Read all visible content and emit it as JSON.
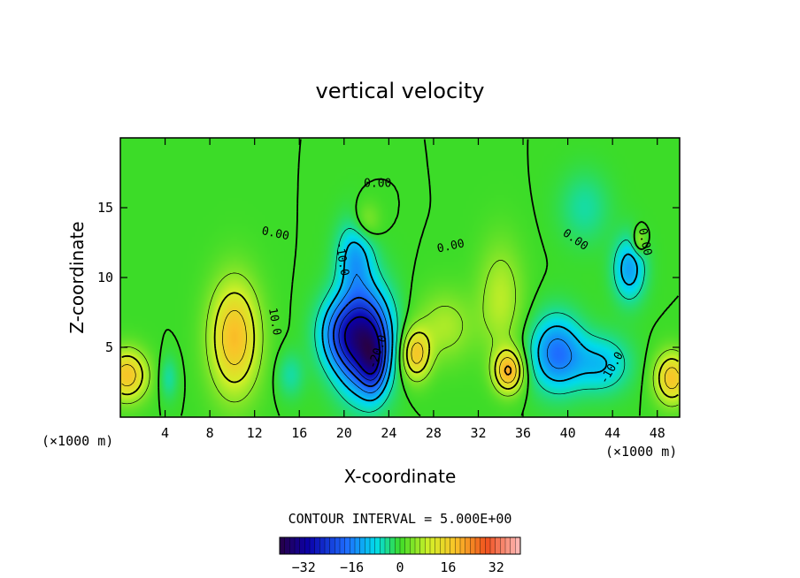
{
  "chart_data": {
    "type": "heatmap",
    "title": "vertical velocity",
    "xlabel": "X-coordinate",
    "ylabel": "Z-coordinate",
    "x_unit_left": "(×1000 m)",
    "x_unit_right": "(×1000 m)",
    "xlim": [
      0,
      50
    ],
    "ylim": [
      0,
      20
    ],
    "x_ticks": [
      "4",
      "8",
      "12",
      "16",
      "20",
      "24",
      "28",
      "32",
      "36",
      "40",
      "44",
      "48"
    ],
    "y_ticks": [
      "5",
      "10",
      "15"
    ],
    "contour_interval_text": "CONTOUR INTERVAL = 5.000E+00",
    "colorbar": {
      "min": -40,
      "max": 40,
      "tick_labels": [
        "-32",
        "-16",
        "0",
        "16",
        "32"
      ],
      "tick_values": [
        -32,
        -16,
        0,
        16,
        32
      ]
    },
    "contour_labels": [
      {
        "text": "0.00",
        "x": 23.0,
        "y": 16.5,
        "rotate": 0
      },
      {
        "text": "0.00",
        "x": 13.8,
        "y": 12.9,
        "rotate": 12
      },
      {
        "text": "0.00",
        "x": 29.6,
        "y": 12.0,
        "rotate": -12
      },
      {
        "text": "0.00",
        "x": 40.5,
        "y": 12.5,
        "rotate": 35
      },
      {
        "text": "0.00",
        "x": 46.6,
        "y": 12.5,
        "rotate": 78
      },
      {
        "text": "10.0",
        "x": 13.5,
        "y": 6.8,
        "rotate": 80
      },
      {
        "text": "-10.0",
        "x": 19.5,
        "y": 11.3,
        "rotate": 80
      },
      {
        "text": "-20.0",
        "x": 23.3,
        "y": 4.6,
        "rotate": -70
      },
      {
        "text": "-10.0",
        "x": 44.2,
        "y": 3.4,
        "rotate": -60
      }
    ],
    "features": [
      {
        "x": 0.6,
        "z": 3.0,
        "w": -4.0,
        "sx": 1.8,
        "sz": 1.8,
        "v": 18
      },
      {
        "x": 10.2,
        "z": 5.7,
        "w": -4.0,
        "sx": 2.2,
        "sz": 4.0,
        "v": 19
      },
      {
        "x": 21.8,
        "z": 5.5,
        "w": -4.0,
        "sx": 2.4,
        "sz": 3.6,
        "v": -32
      },
      {
        "x": 22.6,
        "z": 3.8,
        "w": -4.0,
        "sx": 1.1,
        "sz": 2.2,
        "v": -12
      },
      {
        "x": 19.5,
        "z": 6.0,
        "w": -4.0,
        "sx": 2.0,
        "sz": 2.5,
        "v": -12
      },
      {
        "x": 21.0,
        "z": 11.5,
        "w": -4.0,
        "sx": 1.6,
        "sz": 2.6,
        "v": -12
      },
      {
        "x": 22.0,
        "z": 14.0,
        "w": -4.0,
        "sx": 1.2,
        "sz": 1.4,
        "v": 6
      },
      {
        "x": 26.4,
        "z": 4.5,
        "w": -4.0,
        "sx": 1.3,
        "sz": 1.8,
        "v": 17
      },
      {
        "x": 29.0,
        "z": 6.5,
        "w": -4.0,
        "sx": 2.5,
        "sz": 2.5,
        "v": 7
      },
      {
        "x": 34.7,
        "z": 3.3,
        "w": -4.0,
        "sx": 1.3,
        "sz": 1.5,
        "v": 20
      },
      {
        "x": 34.0,
        "z": 8.5,
        "w": -4.0,
        "sx": 2.0,
        "sz": 4.0,
        "v": 8
      },
      {
        "x": 39.0,
        "z": 4.6,
        "w": -4.0,
        "sx": 2.3,
        "sz": 2.6,
        "v": -17
      },
      {
        "x": 43.0,
        "z": 3.8,
        "w": -4.0,
        "sx": 2.5,
        "sz": 2.0,
        "v": -10
      },
      {
        "x": 45.5,
        "z": 10.6,
        "w": -4.0,
        "sx": 1.4,
        "sz": 2.2,
        "v": -13
      },
      {
        "x": 46.4,
        "z": 12.6,
        "w": -4.0,
        "sx": 0.6,
        "sz": 0.9,
        "v": 8
      },
      {
        "x": 49.3,
        "z": 2.8,
        "w": -4.0,
        "sx": 1.5,
        "sz": 1.8,
        "v": 18
      },
      {
        "x": 4.3,
        "z": 2.8,
        "w": -4.0,
        "sx": 0.8,
        "sz": 1.5,
        "v": -5
      },
      {
        "x": 15.2,
        "z": 3.0,
        "w": -4.0,
        "sx": 1.2,
        "sz": 1.6,
        "v": -5
      },
      {
        "x": 41.5,
        "z": 15.0,
        "w": -4.0,
        "sx": 2.2,
        "sz": 2.5,
        "v": -5
      }
    ]
  },
  "colors": {
    "frame": "#000000",
    "background": "#ffffff"
  }
}
